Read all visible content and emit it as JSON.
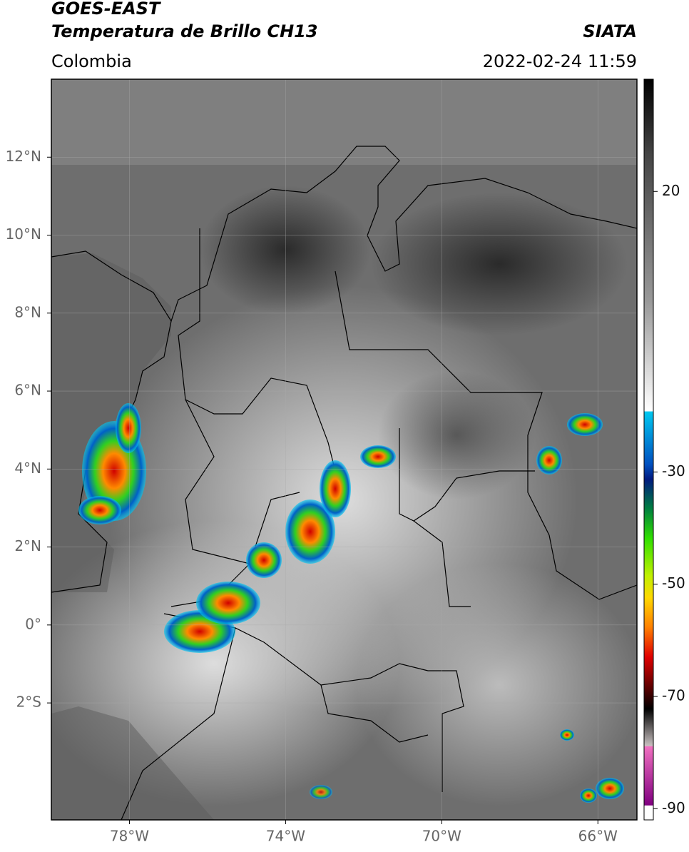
{
  "header": {
    "title": "GOES-EAST",
    "subtitle": "Temperatura de Brillo CH13",
    "source": "SIATA",
    "region": "Colombia",
    "timestamp": "2022-02-24 11:59"
  },
  "map": {
    "xlim": [
      -80,
      -65
    ],
    "ylim": [
      -5,
      14
    ],
    "xticks": [
      {
        "value": -78,
        "label": "78°W"
      },
      {
        "value": -74,
        "label": "74°W"
      },
      {
        "value": -70,
        "label": "70°W"
      },
      {
        "value": -66,
        "label": "66°W"
      }
    ],
    "yticks": [
      {
        "value": 12,
        "label": "12°N"
      },
      {
        "value": 10,
        "label": "10°N"
      },
      {
        "value": 8,
        "label": "8°N"
      },
      {
        "value": 6,
        "label": "6°N"
      },
      {
        "value": 4,
        "label": "4°N"
      },
      {
        "value": 2,
        "label": "2°N"
      },
      {
        "value": 0,
        "label": "0°"
      },
      {
        "value": -2,
        "label": "2°S"
      }
    ],
    "grid": true
  },
  "colorbar": {
    "lim": [
      -92,
      40
    ],
    "ticks": [
      20,
      -30,
      -50,
      -70,
      -90
    ]
  }
}
